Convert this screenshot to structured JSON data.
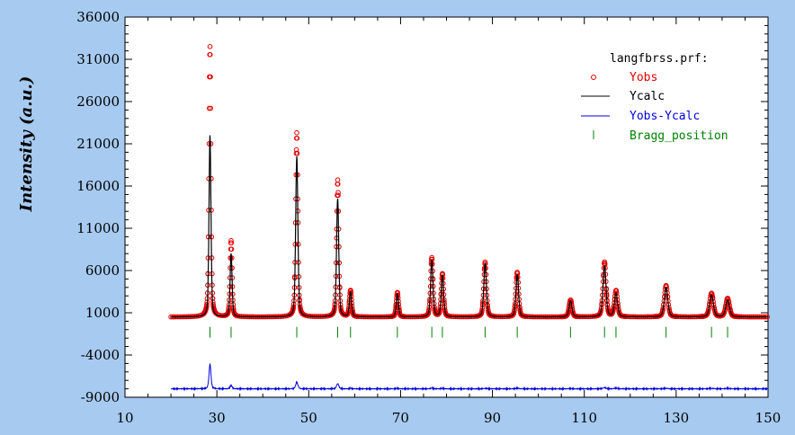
{
  "chart_data": {
    "type": "line",
    "title": "",
    "xlabel": "",
    "ylabel": "Intensity (a.u.)",
    "xlim": [
      10,
      150
    ],
    "ylim": [
      -9000,
      36000
    ],
    "x_ticks": [
      10,
      30,
      50,
      70,
      90,
      110,
      130,
      150
    ],
    "y_ticks": [
      -9000,
      -4000,
      1000,
      6000,
      11000,
      16000,
      21000,
      26000,
      31000,
      36000
    ],
    "x_range": [
      20,
      150
    ],
    "baseline": 500,
    "diff_offset": -8000,
    "bragg_y": -1300,
    "peaks": [
      {
        "pos": 28.5,
        "obs": 32500,
        "calc": 22000,
        "width": 0.45
      },
      {
        "pos": 33.1,
        "obs": 9500,
        "calc": 8000,
        "width": 0.45
      },
      {
        "pos": 47.4,
        "obs": 22300,
        "calc": 19500,
        "width": 0.5
      },
      {
        "pos": 56.3,
        "obs": 16700,
        "calc": 14500,
        "width": 0.5
      },
      {
        "pos": 59.1,
        "obs": 3600,
        "calc": 3400,
        "width": 0.5
      },
      {
        "pos": 69.3,
        "obs": 3400,
        "calc": 3200,
        "width": 0.5
      },
      {
        "pos": 76.8,
        "obs": 7500,
        "calc": 7200,
        "width": 0.55
      },
      {
        "pos": 79.1,
        "obs": 5600,
        "calc": 5400,
        "width": 0.55
      },
      {
        "pos": 88.4,
        "obs": 7000,
        "calc": 6800,
        "width": 0.6
      },
      {
        "pos": 95.4,
        "obs": 5800,
        "calc": 5500,
        "width": 0.6
      },
      {
        "pos": 107.0,
        "obs": 2500,
        "calc": 2400,
        "width": 0.65
      },
      {
        "pos": 114.4,
        "obs": 7000,
        "calc": 6500,
        "width": 0.7
      },
      {
        "pos": 116.9,
        "obs": 3600,
        "calc": 3300,
        "width": 0.7
      },
      {
        "pos": 127.8,
        "obs": 4200,
        "calc": 4000,
        "width": 0.8
      },
      {
        "pos": 137.7,
        "obs": 3300,
        "calc": 3100,
        "width": 0.85
      },
      {
        "pos": 141.2,
        "obs": 2700,
        "calc": 2500,
        "width": 0.85
      }
    ],
    "bragg_positions": [
      28.5,
      33.1,
      47.4,
      56.3,
      59.1,
      69.3,
      76.8,
      79.1,
      88.4,
      95.4,
      107.0,
      114.4,
      116.9,
      127.8,
      137.7,
      141.2
    ],
    "series": [
      {
        "name": "Yobs",
        "color": "#e00000",
        "marker": "circle-open"
      },
      {
        "name": "Ycalc",
        "color": "#000000",
        "marker": "line"
      },
      {
        "name": "Yobs-Ycalc",
        "color": "#0000e0",
        "marker": "line"
      },
      {
        "name": "Bragg_position",
        "color": "#008000",
        "marker": "vbar"
      }
    ],
    "legend_title": "langfbrss.prf:",
    "legend_position": "top-right",
    "colors": {
      "background": "#a6caf0",
      "plot_bg": "#ffffff"
    }
  }
}
